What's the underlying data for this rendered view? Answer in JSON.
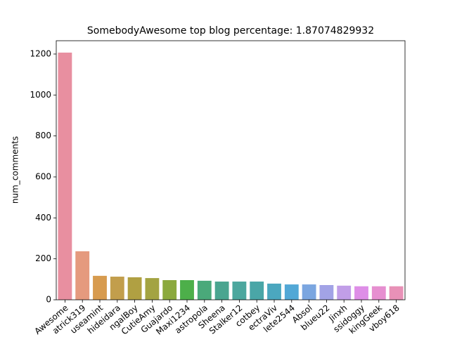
{
  "chart_data": {
    "type": "bar",
    "title": "SomebodyAwesome   top blog percentage:    1.87074829932",
    "ylabel": "num_comments",
    "categories": [
      "Awesome",
      "atrick319",
      "useamint",
      "hideidara",
      "ngalBoy",
      "CutieAmy",
      "Guajardo",
      "Maxi1234",
      "astropola",
      "Sheena",
      "Stalker12",
      "cotbey",
      "ectraViv",
      "lete2544",
      "Absol",
      "blueu22",
      "Jinxh",
      "ssidoggy",
      "kingGeek",
      "vboy618"
    ],
    "values": [
      1207,
      237,
      117,
      113,
      110,
      106,
      96,
      96,
      93,
      89,
      89,
      89,
      79,
      75,
      75,
      72,
      69,
      66,
      66,
      66
    ],
    "colors": [
      "#e88fa0",
      "#e59a7e",
      "#d79b4f",
      "#c29e4c",
      "#b0a042",
      "#a3a342",
      "#8ba93e",
      "#4daf4a",
      "#4aa97a",
      "#4aa590",
      "#4ca79e",
      "#4aa6a7",
      "#4ba7bf",
      "#52a8d6",
      "#7ba6e0",
      "#a2a3e6",
      "#c19ee8",
      "#de8ee7",
      "#e68fd0",
      "#e891b7"
    ],
    "ylim": [
      0,
      1265
    ],
    "yticks": [
      0,
      200,
      400,
      600,
      800,
      1000,
      1200
    ],
    "grid": false
  }
}
